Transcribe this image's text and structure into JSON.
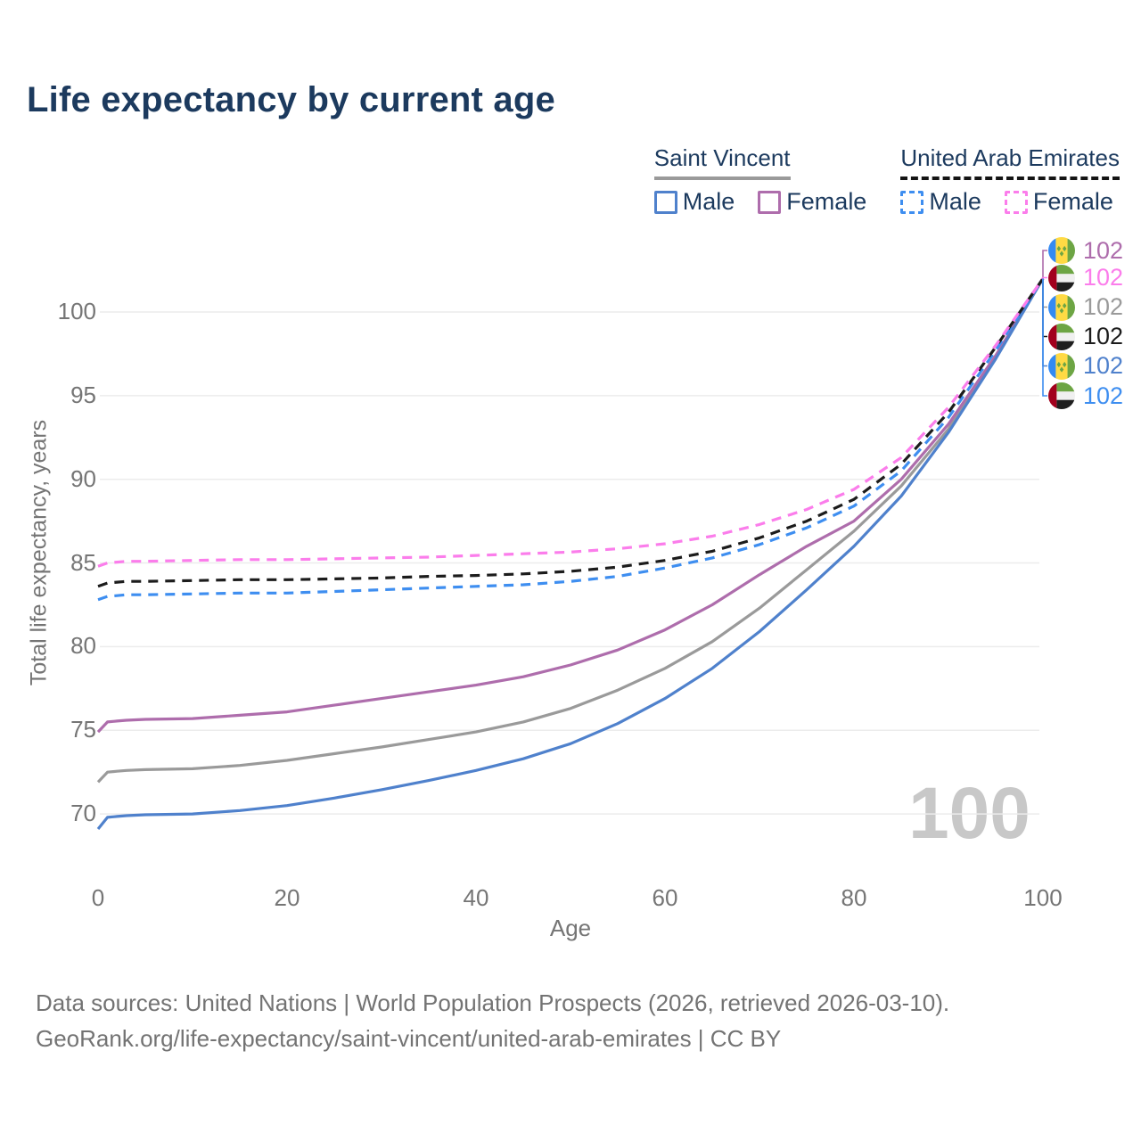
{
  "title": "Life expectancy by current age",
  "legend": {
    "groups": [
      {
        "name": "Saint Vincent",
        "line_style": "solid",
        "heading_line_color": "#9a9a9a",
        "items": [
          {
            "label": "Male",
            "color": "#4f81cc",
            "dashed": false
          },
          {
            "label": "Female",
            "color": "#ae6dac",
            "dashed": false
          }
        ]
      },
      {
        "name": "United Arab Emirates",
        "line_style": "dashed",
        "heading_line_color": "#141414",
        "items": [
          {
            "label": "Male",
            "color": "#3e8ef0",
            "dashed": true
          },
          {
            "label": "Female",
            "color": "#fb7deb",
            "dashed": true
          }
        ]
      }
    ]
  },
  "watermark": "100",
  "chart_data": {
    "type": "line",
    "title": "Life expectancy by current age",
    "xlabel": "Age",
    "ylabel": "Total life expectancy, years",
    "xlim": [
      0,
      100
    ],
    "ylim": [
      66,
      104
    ],
    "x_ticks": [
      0,
      20,
      40,
      60,
      80,
      100
    ],
    "y_ticks": [
      70,
      75,
      80,
      85,
      90,
      95,
      100
    ],
    "grid": "horizontal",
    "legend_position": "top-right",
    "x": [
      0,
      1,
      2,
      3,
      5,
      10,
      15,
      20,
      25,
      30,
      35,
      40,
      45,
      50,
      55,
      60,
      65,
      70,
      75,
      80,
      85,
      90,
      95,
      100
    ],
    "series": [
      {
        "name": "Saint Vincent",
        "sex": "both",
        "style": "solid",
        "color": "#9a9a9a",
        "values": [
          71.9,
          72.5,
          72.55,
          72.6,
          72.65,
          72.7,
          72.9,
          73.2,
          73.6,
          74.0,
          74.45,
          74.9,
          75.5,
          76.3,
          77.4,
          78.7,
          80.3,
          82.3,
          84.6,
          86.9,
          89.6,
          93.0,
          97.3,
          102
        ]
      },
      {
        "name": "Saint Vincent Female",
        "sex": "female",
        "style": "solid",
        "color": "#ae6dac",
        "values": [
          74.9,
          75.5,
          75.55,
          75.6,
          75.65,
          75.7,
          75.9,
          76.1,
          76.5,
          76.9,
          77.3,
          77.7,
          78.2,
          78.9,
          79.8,
          81.0,
          82.5,
          84.3,
          86.0,
          87.5,
          90.0,
          93.3,
          97.4,
          102
        ]
      },
      {
        "name": "Saint Vincent Male",
        "sex": "male",
        "style": "solid",
        "color": "#4f81cc",
        "values": [
          69.1,
          69.8,
          69.85,
          69.9,
          69.95,
          70.0,
          70.2,
          70.5,
          70.95,
          71.45,
          72.0,
          72.6,
          73.3,
          74.2,
          75.4,
          76.9,
          78.7,
          80.9,
          83.4,
          86.0,
          89.0,
          92.8,
          97.2,
          102
        ]
      },
      {
        "name": "United Arab Emirates Male",
        "sex": "male",
        "style": "dashed",
        "color": "#3e8ef0",
        "values": [
          82.8,
          83.0,
          83.05,
          83.1,
          83.1,
          83.15,
          83.2,
          83.2,
          83.3,
          83.4,
          83.5,
          83.6,
          83.7,
          83.9,
          84.2,
          84.7,
          85.3,
          86.1,
          87.1,
          88.4,
          90.5,
          93.7,
          97.7,
          102
        ]
      },
      {
        "name": "United Arab Emirates",
        "sex": "both",
        "style": "dashed",
        "color": "#1c1c1c",
        "values": [
          83.6,
          83.8,
          83.85,
          83.9,
          83.9,
          83.95,
          84.0,
          84.0,
          84.05,
          84.1,
          84.2,
          84.25,
          84.35,
          84.5,
          84.75,
          85.15,
          85.7,
          86.5,
          87.5,
          88.8,
          90.9,
          94.0,
          97.9,
          102
        ]
      },
      {
        "name": "United Arab Emirates Female",
        "sex": "female",
        "style": "dashed",
        "color": "#fb7deb",
        "values": [
          84.8,
          85.0,
          85.05,
          85.1,
          85.1,
          85.15,
          85.2,
          85.2,
          85.25,
          85.3,
          85.35,
          85.45,
          85.55,
          85.65,
          85.85,
          86.15,
          86.6,
          87.3,
          88.2,
          89.4,
          91.3,
          94.3,
          98.0,
          102
        ]
      }
    ],
    "end_labels": [
      {
        "value": "102",
        "flag": "saint-vincent",
        "color": "#ae6dac"
      },
      {
        "value": "102",
        "flag": "united-arab-emirates",
        "color": "#fb7deb"
      },
      {
        "value": "102",
        "flag": "saint-vincent",
        "color": "#9a9a9a"
      },
      {
        "value": "102",
        "flag": "united-arab-emirates",
        "color": "#1c1c1c"
      },
      {
        "value": "102",
        "flag": "saint-vincent",
        "color": "#4f81cc"
      },
      {
        "value": "102",
        "flag": "united-arab-emirates",
        "color": "#3e8ef0"
      }
    ]
  },
  "footer": {
    "line1": "Data sources: United Nations | World Population Prospects (2026, retrieved 2026-03-10).",
    "line2": "GeoRank.org/life-expectancy/saint-vincent/united-arab-emirates | CC BY"
  }
}
